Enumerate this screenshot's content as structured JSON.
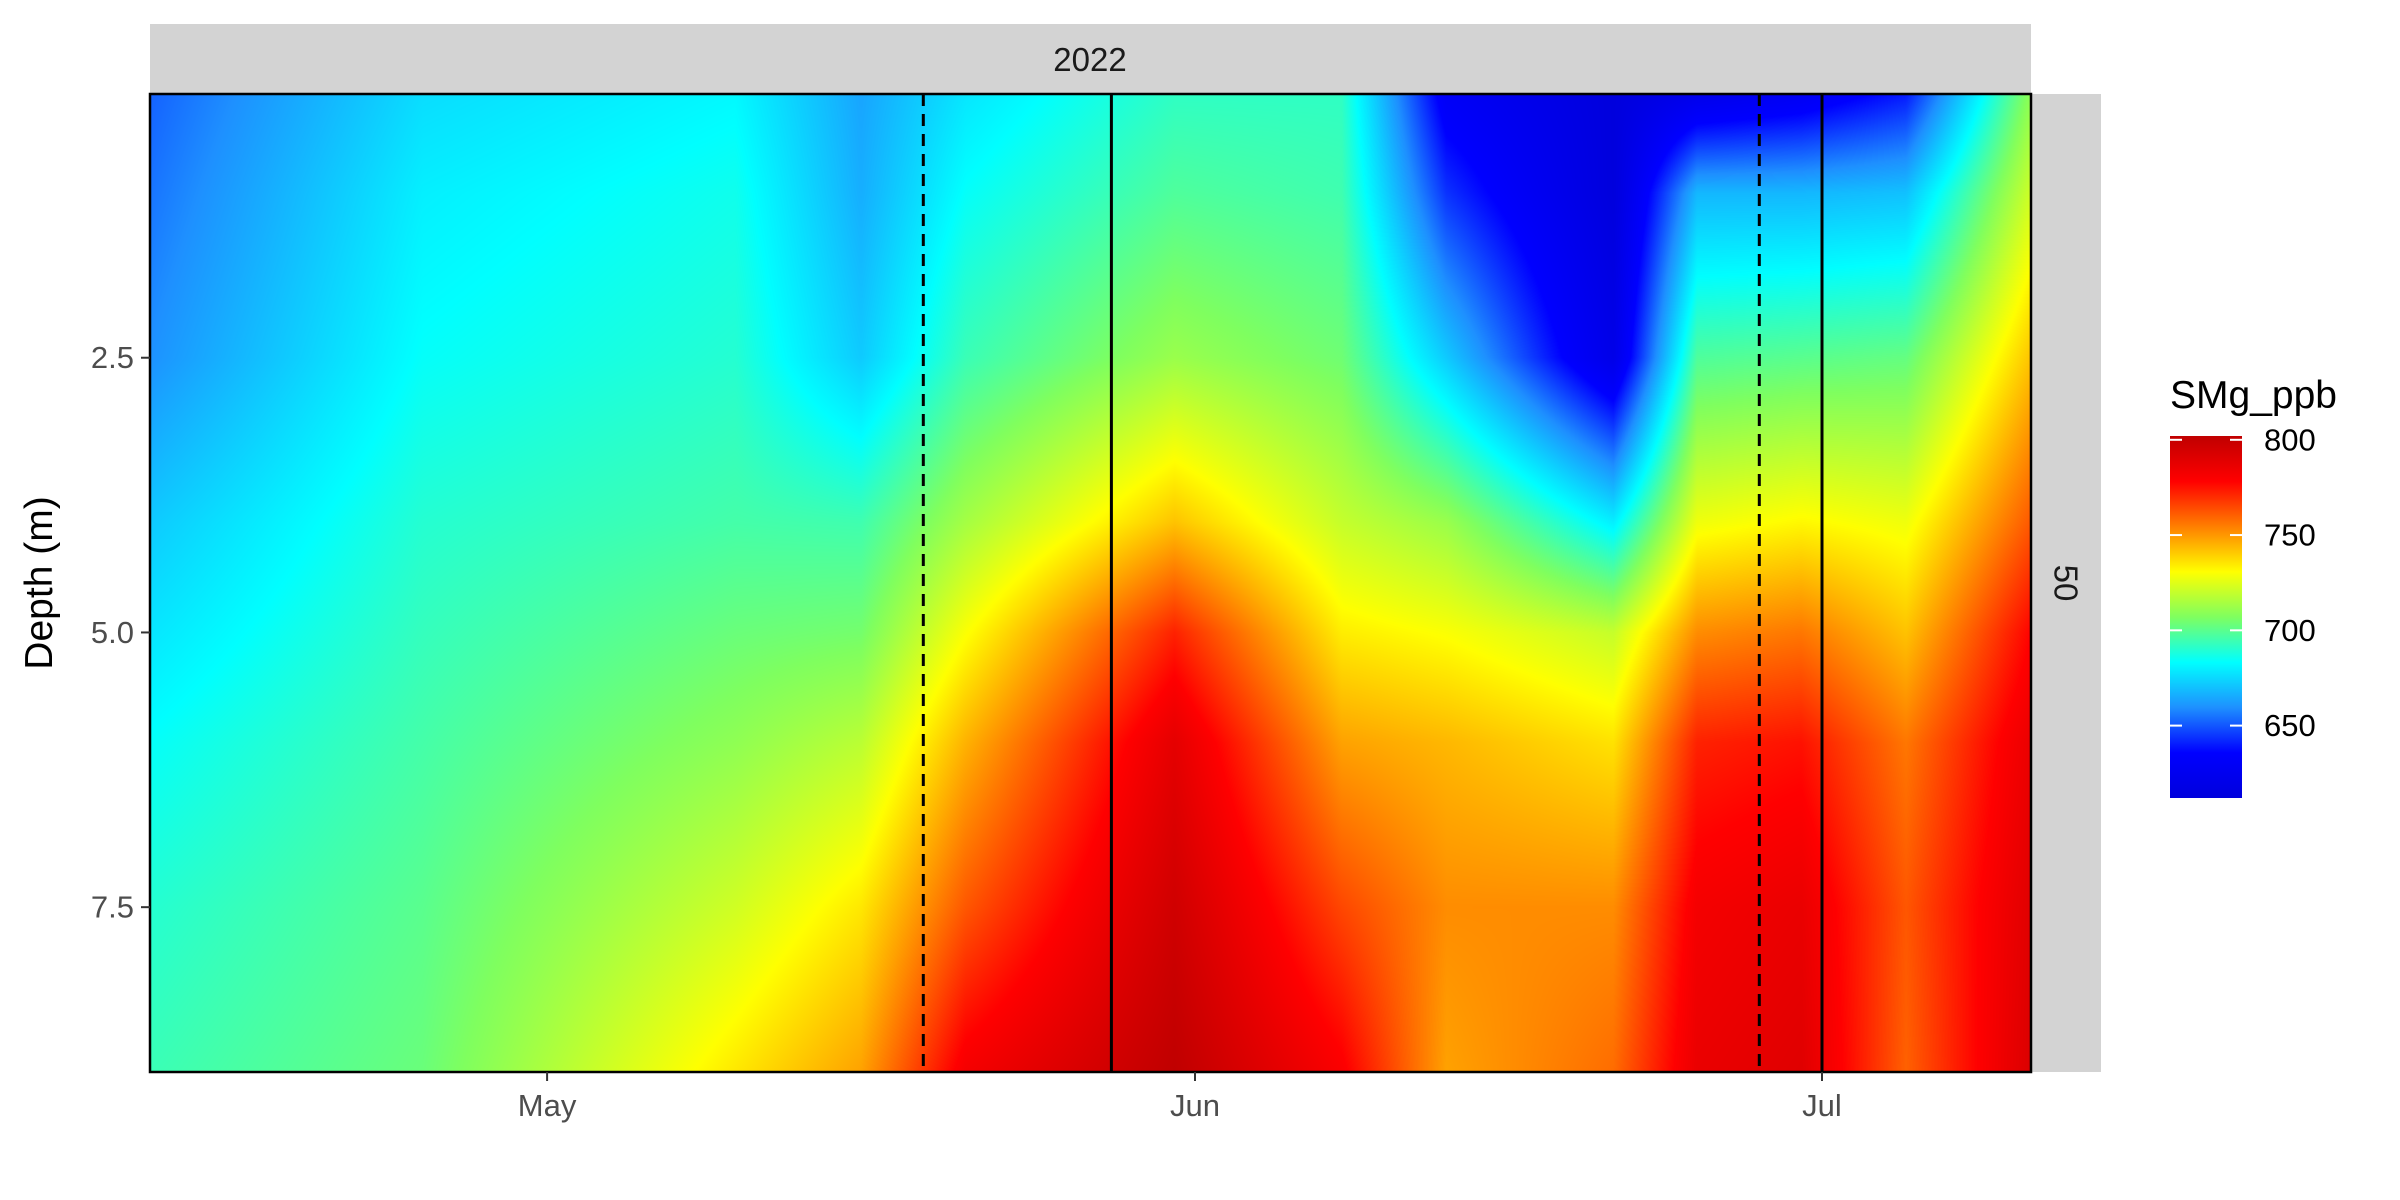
{
  "chart_data": {
    "type": "heatmap",
    "title": "",
    "facet_top": "2022",
    "facet_right": "50",
    "xlabel": "",
    "ylabel": "Depth (m)",
    "x_ticks": [
      {
        "label": "May",
        "date": "2022-05-01"
      },
      {
        "label": "Jun",
        "date": "2022-06-01"
      },
      {
        "label": "Jul",
        "date": "2022-07-01"
      }
    ],
    "xlim": [
      "2022-04-12",
      "2022-07-11"
    ],
    "y_ticks": [
      2.5,
      5.0,
      7.5
    ],
    "ylim": [
      0.1,
      9.0
    ],
    "y_reversed": true,
    "grid": false,
    "vlines": [
      {
        "date": "2022-05-19",
        "style": "dashed"
      },
      {
        "date": "2022-05-28",
        "style": "solid"
      },
      {
        "date": "2022-06-28",
        "style": "dashed"
      },
      {
        "date": "2022-07-01",
        "style": "solid"
      }
    ],
    "legend": {
      "title": "SMg_ppb",
      "position": "right",
      "breaks": [
        650,
        700,
        750,
        800
      ],
      "range": [
        612,
        802
      ],
      "colors": [
        "#0000dd",
        "#0000ff",
        "#1e90ff",
        "#00ffff",
        "#7fff5f",
        "#ffff00",
        "#ff7f00",
        "#ff0000",
        "#c00000"
      ]
    },
    "z_columns": [
      {
        "date": "2022-04-12",
        "depths": [
          0.1,
          1,
          2.5,
          4,
          5,
          6,
          7.5,
          9
        ],
        "values": [
          652,
          655,
          660,
          672,
          678,
          684,
          690,
          694
        ]
      },
      {
        "date": "2022-04-25",
        "depths": [
          0.1,
          1,
          2.5,
          4,
          5,
          6,
          7.5,
          9
        ],
        "values": [
          676,
          680,
          684,
          690,
          693,
          696,
          700,
          703
        ]
      },
      {
        "date": "2022-05-10",
        "depths": [
          0.1,
          1,
          2.5,
          4,
          5,
          6,
          7.5,
          9
        ],
        "values": [
          682,
          686,
          690,
          696,
          703,
          710,
          722,
          735
        ]
      },
      {
        "date": "2022-05-16",
        "depths": [
          0.1,
          1,
          2.5,
          4,
          5,
          6,
          7.5,
          9
        ],
        "values": [
          664,
          666,
          672,
          695,
          705,
          718,
          735,
          748
        ]
      },
      {
        "date": "2022-05-21",
        "depths": [
          0.1,
          1,
          2.5,
          4,
          5,
          6,
          7.5,
          9
        ],
        "values": [
          678,
          684,
          694,
          714,
          730,
          745,
          762,
          782
        ]
      },
      {
        "date": "2022-05-31",
        "depths": [
          0.1,
          1,
          2.5,
          4,
          5,
          6,
          7.5,
          9
        ],
        "values": [
          692,
          698,
          712,
          742,
          772,
          788,
          796,
          802
        ]
      },
      {
        "date": "2022-06-08",
        "depths": [
          0.1,
          1,
          2.5,
          4,
          5,
          6,
          7.5,
          9
        ],
        "values": [
          692,
          695,
          704,
          720,
          734,
          748,
          765,
          780
        ]
      },
      {
        "date": "2022-06-13",
        "depths": [
          0.1,
          1,
          2.5,
          4,
          5,
          6,
          7.5,
          9
        ],
        "values": [
          630,
          644,
          672,
          712,
          730,
          744,
          752,
          748
        ]
      },
      {
        "date": "2022-06-21",
        "depths": [
          0.1,
          1,
          2.5,
          4,
          5,
          6,
          7.5,
          9
        ],
        "values": [
          612,
          612,
          620,
          680,
          720,
          736,
          752,
          758
        ]
      },
      {
        "date": "2022-06-25",
        "depths": [
          0.1,
          1,
          2.5,
          4,
          5,
          6,
          7.5,
          9
        ],
        "values": [
          622,
          668,
          698,
          728,
          752,
          772,
          782,
          786
        ]
      },
      {
        "date": "2022-06-30",
        "depths": [
          0.1,
          1,
          2.5,
          4,
          5,
          6,
          7.5,
          9
        ],
        "values": [
          628,
          668,
          700,
          732,
          756,
          775,
          786,
          790
        ]
      },
      {
        "date": "2022-07-05",
        "depths": [
          0.1,
          1,
          2.5,
          4,
          5,
          6,
          7.5,
          9
        ],
        "values": [
          640,
          670,
          702,
          728,
          742,
          756,
          762,
          760
        ]
      },
      {
        "date": "2022-07-11",
        "depths": [
          0.1,
          1,
          2.5,
          4,
          5,
          6,
          7.5,
          9
        ],
        "values": [
          710,
          722,
          742,
          762,
          778,
          786,
          790,
          792
        ]
      }
    ]
  }
}
